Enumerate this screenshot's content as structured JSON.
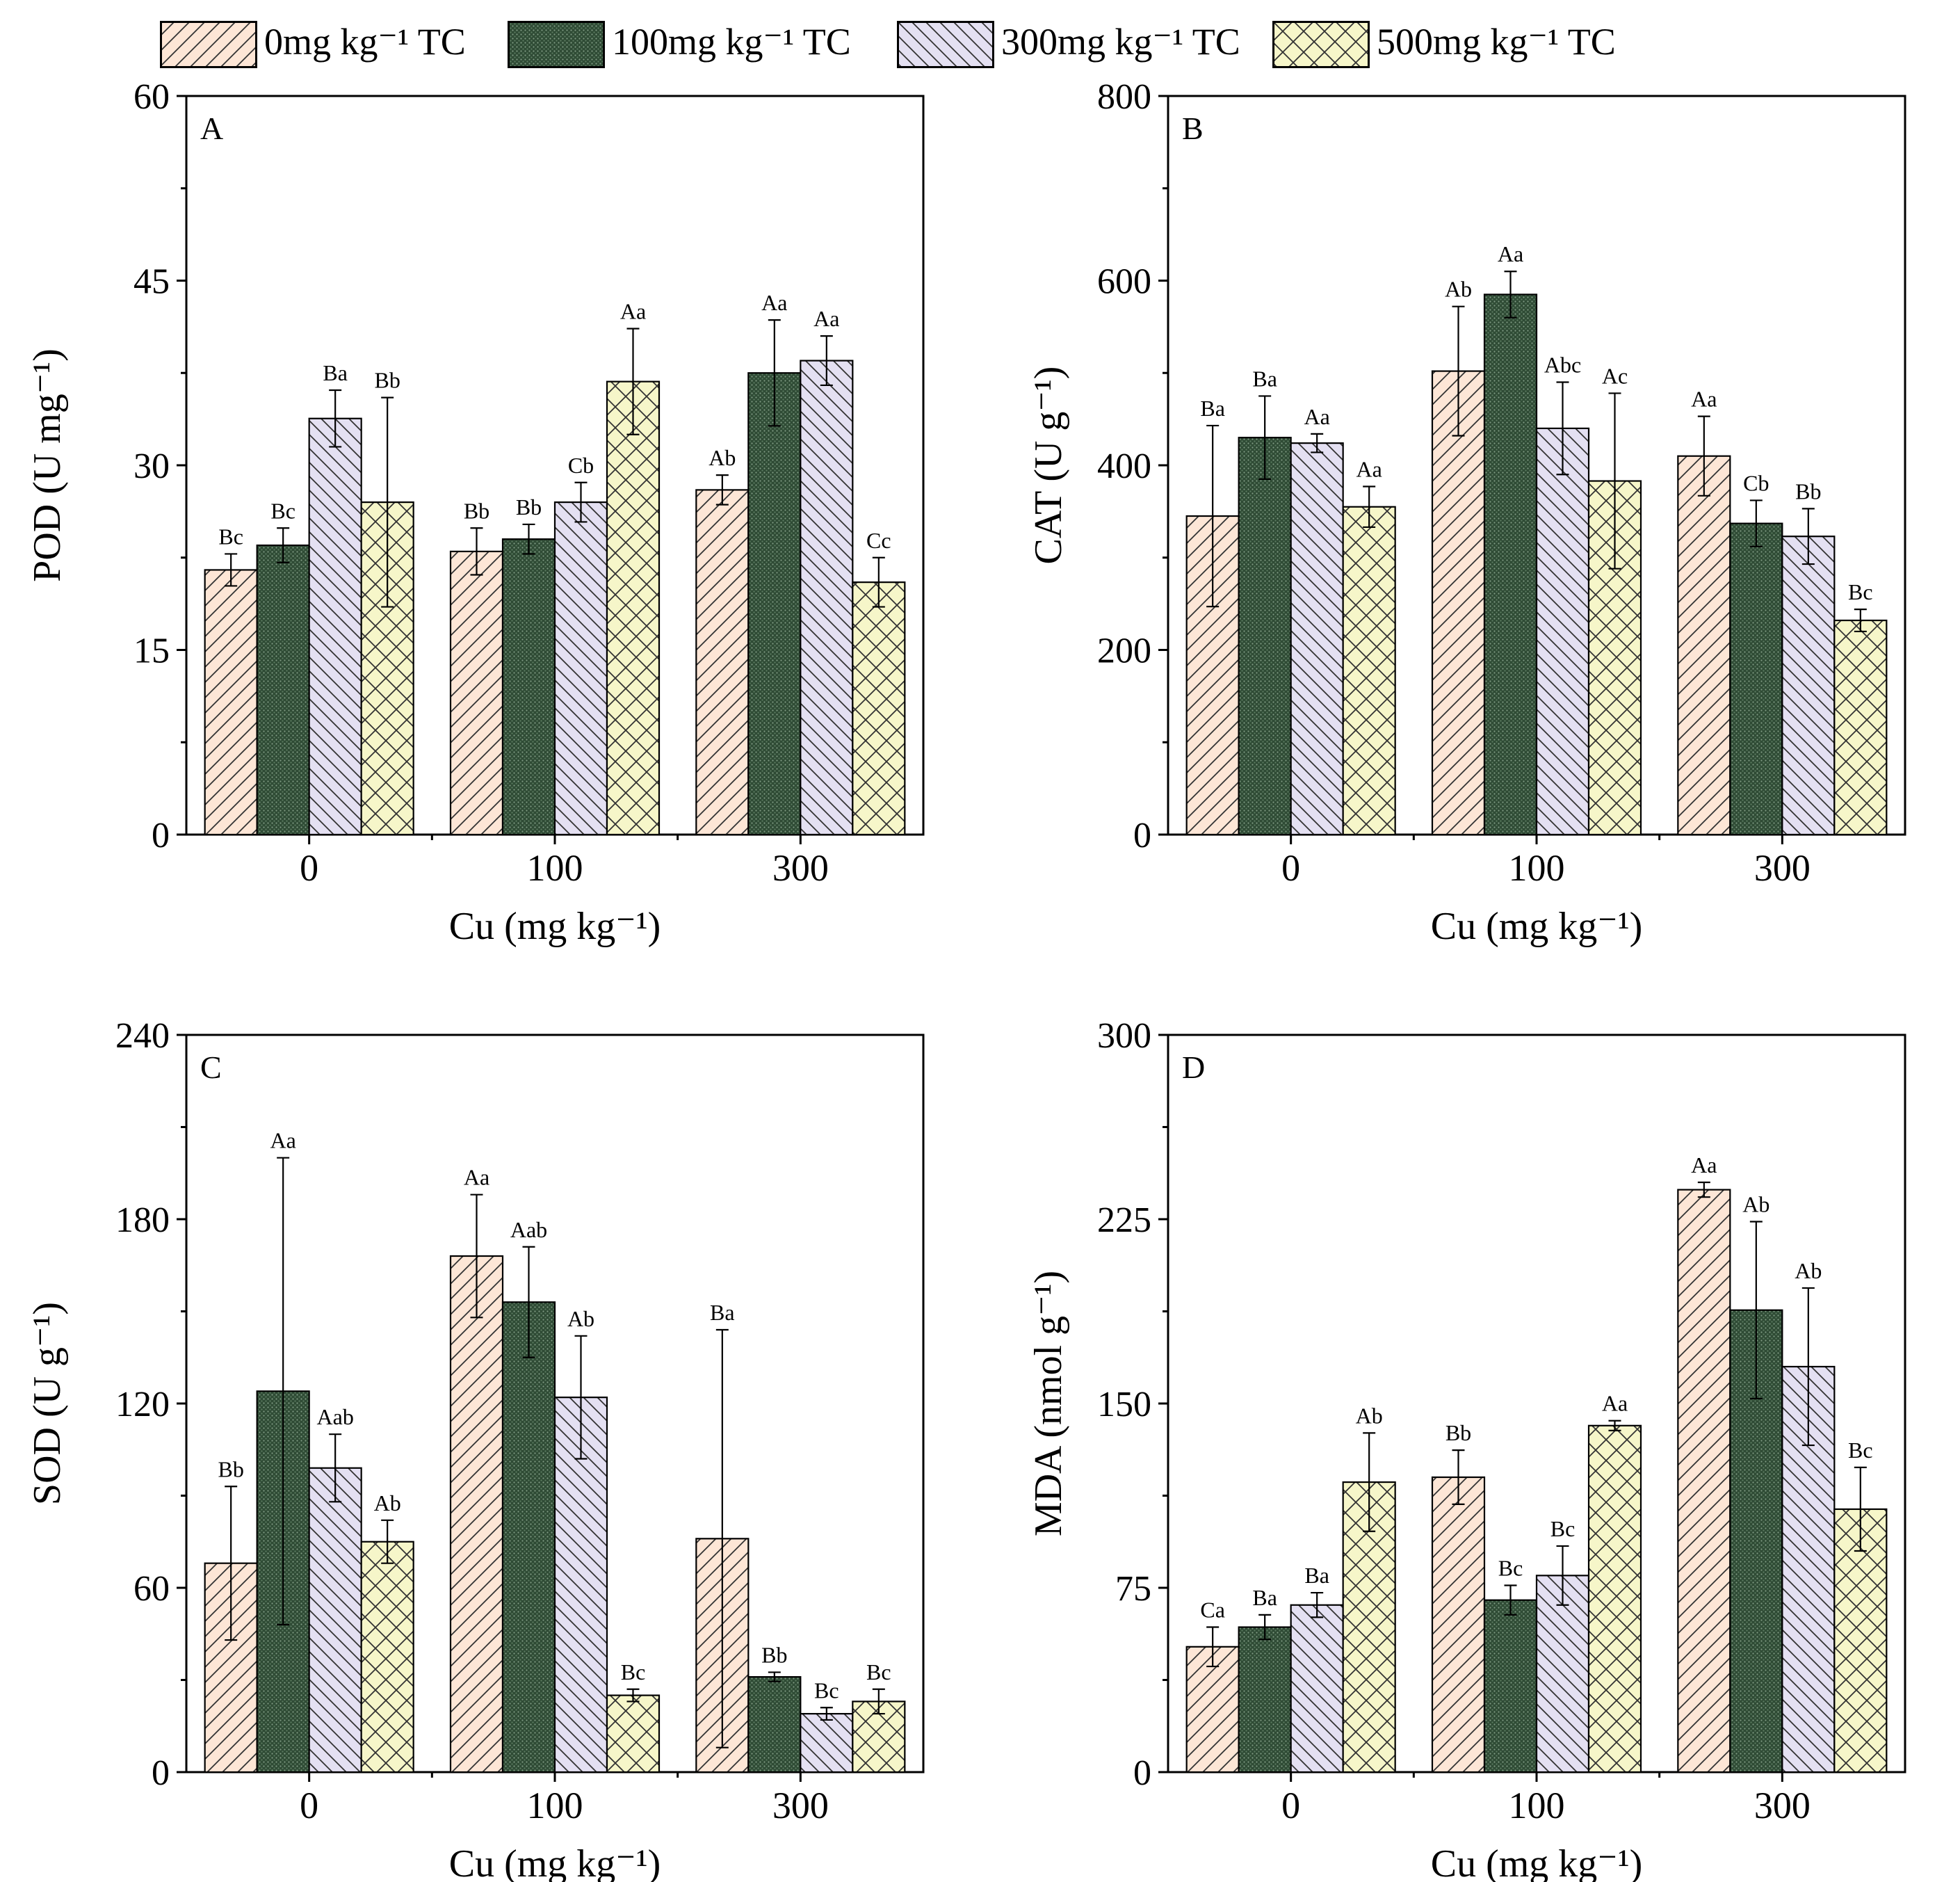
{
  "legend": {
    "items": [
      {
        "label": "0mg kg⁻¹ TC",
        "fill": "#fde6d6",
        "pattern": "diag-right"
      },
      {
        "label": "100mg kg⁻¹ TC",
        "fill": "#2e4a33",
        "pattern": "dots"
      },
      {
        "label": "300mg kg⁻¹ TC",
        "fill": "#e4e0f2",
        "pattern": "diag-left"
      },
      {
        "label": "500mg kg⁻¹ TC",
        "fill": "#f5f5c8",
        "pattern": "crosshatch"
      }
    ]
  },
  "chart_data": [
    {
      "type": "bar",
      "panel_label": "A",
      "categories": [
        "0",
        "100",
        "300"
      ],
      "xlabel": "Cu (mg kg⁻¹)",
      "ylabel": "POD (U mg⁻¹)",
      "ylim": [
        0,
        60
      ],
      "yticks": [
        0,
        15,
        30,
        45,
        60
      ],
      "series": [
        {
          "name": "0mg kg⁻¹ TC",
          "values": [
            21.5,
            23.0,
            28.0
          ],
          "errors": [
            1.3,
            1.9,
            1.2
          ],
          "letters": [
            "Bc",
            "Bb",
            "Ab"
          ]
        },
        {
          "name": "100mg kg⁻¹ TC",
          "values": [
            23.5,
            24.0,
            37.5
          ],
          "errors": [
            1.4,
            1.2,
            4.3
          ],
          "letters": [
            "Bc",
            "Bb",
            "Aa"
          ]
        },
        {
          "name": "300mg kg⁻¹ TC",
          "values": [
            33.8,
            27.0,
            38.5
          ],
          "errors": [
            2.3,
            1.6,
            2.0
          ],
          "letters": [
            "Ba",
            "Cb",
            "Aa"
          ]
        },
        {
          "name": "500mg kg⁻¹ TC",
          "values": [
            27.0,
            36.8,
            20.5
          ],
          "errors": [
            8.5,
            4.3,
            2.0
          ],
          "letters": [
            "Bb",
            "Aa",
            "Cc"
          ]
        }
      ]
    },
    {
      "type": "bar",
      "panel_label": "B",
      "categories": [
        "0",
        "100",
        "300"
      ],
      "xlabel": "Cu (mg kg⁻¹)",
      "ylabel": "CAT (U g⁻¹)",
      "ylim": [
        0,
        800
      ],
      "yticks": [
        0,
        200,
        400,
        600,
        800
      ],
      "series": [
        {
          "name": "0mg kg⁻¹ TC",
          "values": [
            345,
            502,
            410
          ],
          "errors": [
            98,
            70,
            43
          ],
          "letters": [
            "Ba",
            "Ab",
            "Aa"
          ]
        },
        {
          "name": "100mg kg⁻¹ TC",
          "values": [
            430,
            585,
            337
          ],
          "errors": [
            45,
            25,
            25
          ],
          "letters": [
            "Ba",
            "Aa",
            "Cb"
          ]
        },
        {
          "name": "300mg kg⁻¹ TC",
          "values": [
            424,
            440,
            323
          ],
          "errors": [
            10,
            50,
            30
          ],
          "letters": [
            "Aa",
            "Abc",
            "Bb"
          ]
        },
        {
          "name": "500mg kg⁻¹ TC",
          "values": [
            355,
            383,
            232
          ],
          "errors": [
            22,
            95,
            12
          ],
          "letters": [
            "Aa",
            "Ac",
            "Bc"
          ]
        }
      ]
    },
    {
      "type": "bar",
      "panel_label": "C",
      "categories": [
        "0",
        "100",
        "300"
      ],
      "xlabel": "Cu (mg kg⁻¹)",
      "ylabel": "SOD (U g⁻¹)",
      "ylim": [
        0,
        240
      ],
      "yticks": [
        0,
        60,
        120,
        180,
        240
      ],
      "series": [
        {
          "name": "0mg kg⁻¹ TC",
          "values": [
            68,
            168,
            76
          ],
          "errors": [
            25,
            20,
            68
          ],
          "letters": [
            "Bb",
            "Aa",
            "Ba"
          ]
        },
        {
          "name": "100mg kg⁻¹ TC",
          "values": [
            124,
            153,
            31
          ],
          "errors": [
            76,
            18,
            1.5
          ],
          "letters": [
            "Aa",
            "Aab",
            "Bb"
          ]
        },
        {
          "name": "300mg kg⁻¹ TC",
          "values": [
            99,
            122,
            19
          ],
          "errors": [
            11,
            20,
            2
          ],
          "letters": [
            "Aab",
            "Ab",
            "Bc"
          ]
        },
        {
          "name": "500mg kg⁻¹ TC",
          "values": [
            75,
            25,
            23
          ],
          "errors": [
            7,
            2,
            4
          ],
          "letters": [
            "Ab",
            "Bc",
            "Bc"
          ]
        }
      ]
    },
    {
      "type": "bar",
      "panel_label": "D",
      "categories": [
        "0",
        "100",
        "300"
      ],
      "xlabel": "Cu (mg kg⁻¹)",
      "ylabel": "MDA (nmol g⁻¹)",
      "ylim": [
        0,
        300
      ],
      "yticks": [
        0,
        75,
        150,
        225,
        300
      ],
      "series": [
        {
          "name": "0mg kg⁻¹ TC",
          "values": [
            51,
            120,
            237
          ],
          "errors": [
            8,
            11,
            3
          ],
          "letters": [
            "Ca",
            "Bb",
            "Aa"
          ]
        },
        {
          "name": "100mg kg⁻¹ TC",
          "values": [
            59,
            70,
            188
          ],
          "errors": [
            5,
            6,
            36
          ],
          "letters": [
            "Ba",
            "Bc",
            "Ab"
          ]
        },
        {
          "name": "300mg kg⁻¹ TC",
          "values": [
            68,
            80,
            165
          ],
          "errors": [
            5,
            12,
            32
          ],
          "letters": [
            "Ba",
            "Bc",
            "Ab"
          ]
        },
        {
          "name": "500mg kg⁻¹ TC",
          "values": [
            118,
            141,
            107
          ],
          "errors": [
            20,
            2,
            17
          ],
          "letters": [
            "Ab",
            "Aa",
            "Bc"
          ]
        }
      ]
    }
  ]
}
